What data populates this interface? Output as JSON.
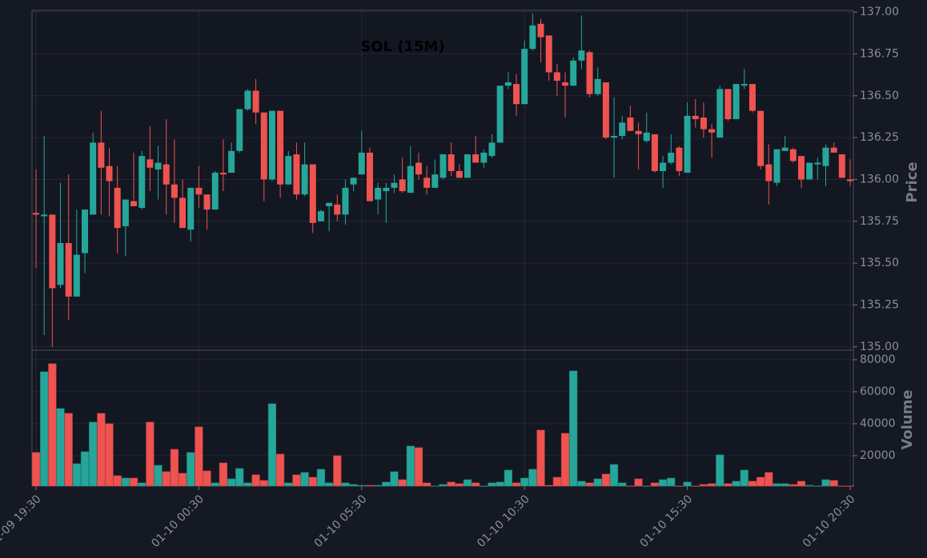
{
  "chart_data": {
    "type": "candlestick",
    "title": "SOL (15M)",
    "ylabel": "Price",
    "y2label": "Volume",
    "up_color": "#26a69a",
    "down_color": "#ef5350",
    "grid": true,
    "x": [
      "01-09 19:30",
      "01-09 19:45",
      "01-09 20:00",
      "01-09 20:15",
      "01-09 20:30",
      "01-09 20:45",
      "01-09 21:00",
      "01-09 21:15",
      "01-09 21:30",
      "01-09 21:45",
      "01-09 22:00",
      "01-09 22:15",
      "01-09 22:30",
      "01-09 22:45",
      "01-09 23:00",
      "01-09 23:15",
      "01-09 23:30",
      "01-09 23:45",
      "01-10 00:00",
      "01-10 00:15",
      "01-10 00:30",
      "01-10 00:45",
      "01-10 01:00",
      "01-10 01:15",
      "01-10 01:30",
      "01-10 01:45",
      "01-10 02:00",
      "01-10 02:15",
      "01-10 02:30",
      "01-10 02:45",
      "01-10 03:00",
      "01-10 03:15",
      "01-10 03:30",
      "01-10 03:45",
      "01-10 04:00",
      "01-10 04:15",
      "01-10 04:30",
      "01-10 04:45",
      "01-10 05:00",
      "01-10 05:15",
      "01-10 05:30",
      "01-10 05:45",
      "01-10 06:00",
      "01-10 06:15",
      "01-10 06:30",
      "01-10 06:45",
      "01-10 07:00",
      "01-10 07:15",
      "01-10 07:30",
      "01-10 07:45",
      "01-10 08:00",
      "01-10 08:15",
      "01-10 08:30",
      "01-10 08:45",
      "01-10 09:00",
      "01-10 09:15",
      "01-10 09:30",
      "01-10 09:45",
      "01-10 10:00",
      "01-10 10:15",
      "01-10 10:30",
      "01-10 10:45",
      "01-10 11:00",
      "01-10 11:15",
      "01-10 11:30",
      "01-10 11:45",
      "01-10 12:00",
      "01-10 12:15",
      "01-10 12:30",
      "01-10 12:45",
      "01-10 13:00",
      "01-10 13:15",
      "01-10 13:30",
      "01-10 13:45",
      "01-10 14:00",
      "01-10 14:15",
      "01-10 14:30",
      "01-10 14:45",
      "01-10 15:00",
      "01-10 15:15",
      "01-10 15:30",
      "01-10 15:45",
      "01-10 16:00",
      "01-10 16:15",
      "01-10 16:30",
      "01-10 16:45",
      "01-10 17:00",
      "01-10 17:15",
      "01-10 17:30",
      "01-10 17:45",
      "01-10 18:00",
      "01-10 18:15",
      "01-10 18:30",
      "01-10 18:45",
      "01-10 19:00",
      "01-10 19:15",
      "01-10 19:30",
      "01-10 19:45",
      "01-10 20:00",
      "01-10 20:15",
      "01-10 20:30"
    ],
    "xticks": [
      "01-09 19:30",
      "01-10 00:30",
      "01-10 05:30",
      "01-10 10:30",
      "01-10 15:30",
      "01-10 20:30"
    ],
    "open": [
      135.8,
      135.78,
      135.79,
      135.37,
      135.62,
      135.3,
      135.56,
      135.79,
      136.22,
      136.08,
      135.95,
      135.72,
      135.87,
      135.83,
      136.12,
      136.06,
      136.09,
      135.97,
      135.89,
      135.7,
      135.95,
      135.91,
      135.82,
      136.04,
      136.04,
      136.17,
      136.42,
      136.53,
      136.4,
      136.0,
      136.41,
      135.97,
      136.15,
      135.91,
      136.09,
      135.75,
      135.84,
      135.85,
      135.79,
      135.97,
      136.03,
      136.16,
      135.88,
      135.93,
      135.95,
      136.0,
      135.92,
      136.1,
      136.01,
      135.95,
      136.01,
      136.15,
      136.05,
      136.01,
      136.15,
      136.1,
      136.14,
      136.22,
      136.56,
      136.57,
      136.45,
      136.78,
      136.93,
      136.86,
      136.64,
      136.58,
      136.56,
      136.71,
      136.76,
      136.51,
      136.58,
      136.25,
      136.26,
      136.37,
      136.29,
      136.23,
      136.27,
      136.05,
      136.1,
      136.19,
      136.04,
      136.38,
      136.37,
      136.3,
      136.25,
      136.54,
      136.36,
      136.56,
      136.57,
      136.41,
      136.09,
      135.98,
      136.17,
      136.18,
      136.14,
      136.0,
      136.09,
      136.08,
      136.19,
      136.15,
      136.0
    ],
    "high": [
      136.06,
      136.26,
      135.79,
      135.98,
      136.03,
      135.82,
      135.82,
      136.28,
      136.41,
      136.19,
      136.08,
      135.88,
      136.16,
      136.17,
      136.32,
      136.2,
      136.36,
      136.24,
      136.0,
      135.95,
      136.08,
      135.91,
      136.05,
      136.24,
      136.22,
      136.42,
      136.54,
      136.6,
      136.4,
      136.41,
      136.41,
      136.17,
      136.22,
      136.22,
      136.09,
      135.82,
      135.86,
      135.91,
      136.0,
      136.01,
      136.29,
      136.19,
      135.98,
      135.98,
      136.03,
      136.13,
      136.2,
      136.16,
      136.08,
      136.12,
      136.15,
      136.22,
      136.09,
      136.15,
      136.26,
      136.18,
      136.27,
      136.56,
      136.64,
      136.63,
      136.83,
      136.99,
      136.96,
      136.86,
      136.69,
      136.64,
      136.73,
      136.98,
      136.77,
      136.67,
      136.58,
      136.49,
      136.38,
      136.44,
      136.34,
      136.4,
      136.27,
      136.14,
      136.27,
      136.2,
      136.46,
      136.48,
      136.46,
      136.33,
      136.56,
      136.54,
      136.57,
      136.66,
      136.57,
      136.41,
      136.21,
      136.18,
      136.26,
      136.19,
      136.14,
      136.1,
      136.13,
      136.21,
      136.22,
      136.15,
      136.12
    ],
    "low": [
      135.47,
      135.07,
      135.0,
      135.35,
      135.16,
      135.3,
      135.44,
      135.79,
      135.79,
      135.78,
      135.56,
      135.54,
      135.84,
      135.82,
      135.93,
      135.88,
      135.79,
      135.74,
      135.71,
      135.63,
      135.83,
      135.7,
      135.82,
      135.93,
      136.04,
      136.16,
      136.41,
      136.33,
      135.87,
      135.99,
      135.89,
      135.97,
      135.88,
      135.9,
      135.68,
      135.75,
      135.69,
      135.75,
      135.73,
      135.93,
      136.03,
      135.87,
      135.79,
      135.74,
      135.92,
      135.92,
      135.92,
      136.0,
      135.91,
      135.95,
      136.0,
      136.02,
      136.01,
      136.01,
      136.1,
      136.07,
      136.13,
      136.22,
      136.54,
      136.38,
      136.45,
      136.77,
      136.7,
      136.59,
      136.5,
      136.37,
      136.56,
      136.66,
      136.49,
      136.5,
      136.24,
      136.01,
      136.24,
      136.29,
      136.06,
      136.22,
      136.04,
      135.95,
      136.09,
      136.02,
      136.04,
      136.31,
      136.25,
      136.13,
      136.25,
      136.35,
      136.36,
      136.54,
      136.4,
      136.06,
      135.85,
      135.96,
      136.17,
      136.1,
      135.95,
      136.0,
      136.0,
      135.96,
      136.16,
      136.01,
      135.96
    ],
    "close": [
      135.79,
      135.79,
      135.35,
      135.62,
      135.3,
      135.55,
      135.82,
      136.22,
      136.07,
      135.99,
      135.71,
      135.88,
      135.84,
      136.14,
      136.07,
      136.1,
      135.97,
      135.89,
      135.71,
      135.95,
      135.91,
      135.82,
      136.04,
      136.03,
      136.17,
      136.42,
      136.53,
      136.4,
      136.0,
      136.41,
      135.97,
      136.14,
      135.91,
      136.09,
      135.74,
      135.81,
      135.86,
      135.79,
      135.95,
      136.01,
      136.16,
      135.87,
      135.95,
      135.95,
      135.98,
      135.93,
      136.08,
      136.03,
      135.95,
      136.03,
      136.15,
      136.05,
      136.01,
      136.15,
      136.1,
      136.16,
      136.22,
      136.56,
      136.58,
      136.45,
      136.78,
      136.92,
      136.85,
      136.64,
      136.59,
      136.56,
      136.71,
      136.77,
      136.51,
      136.6,
      136.25,
      136.26,
      136.34,
      136.29,
      136.27,
      136.28,
      136.05,
      136.1,
      136.16,
      136.05,
      136.38,
      136.36,
      136.3,
      136.28,
      136.54,
      136.36,
      136.57,
      136.57,
      136.41,
      136.08,
      135.99,
      136.18,
      136.19,
      136.11,
      136.0,
      136.1,
      136.1,
      136.19,
      136.16,
      136.01,
      135.99
    ],
    "volume": [
      22000,
      72500,
      77500,
      49500,
      46500,
      15000,
      22500,
      41000,
      46500,
      40000,
      7500,
      6000,
      6000,
      3000,
      41000,
      14000,
      10000,
      24000,
      9000,
      22000,
      38000,
      10500,
      3000,
      15500,
      5500,
      12000,
      3000,
      8000,
      4500,
      52500,
      21000,
      3000,
      8000,
      9500,
      6500,
      11500,
      3000,
      20000,
      3000,
      2000,
      1500,
      1500,
      1500,
      3500,
      10000,
      5000,
      26000,
      25000,
      3000,
      1000,
      2000,
      3500,
      2500,
      5000,
      3000,
      1000,
      3000,
      3500,
      11000,
      3000,
      6000,
      11500,
      36000,
      1500,
      6500,
      34000,
      73000,
      4000,
      3000,
      5500,
      8500,
      14500,
      3000,
      1000,
      5500,
      1000,
      3000,
      5000,
      6000,
      1000,
      3500,
      1000,
      2000,
      2500,
      20500,
      2500,
      4000,
      11000,
      4000,
      6500,
      9500,
      2500,
      2500,
      2000,
      4000,
      1500,
      1000,
      5000,
      4500,
      1000,
      1000
    ],
    "ylim": [
      134.98,
      137.01
    ],
    "yticks": [
      {
        "value": 135,
        "label": "135.00"
      },
      {
        "value": 135.25,
        "label": "135.25"
      },
      {
        "value": 135.5,
        "label": "135.50"
      },
      {
        "value": 135.75,
        "label": "135.75"
      },
      {
        "value": 136,
        "label": "136.00"
      },
      {
        "value": 136.25,
        "label": "136.25"
      },
      {
        "value": 136.5,
        "label": "136.50"
      },
      {
        "value": 136.75,
        "label": "136.75"
      },
      {
        "value": 137,
        "label": "137.00"
      }
    ],
    "y2lim": [
      0,
      85000
    ],
    "y2ticks": [
      20000,
      40000,
      60000,
      80000
    ]
  }
}
